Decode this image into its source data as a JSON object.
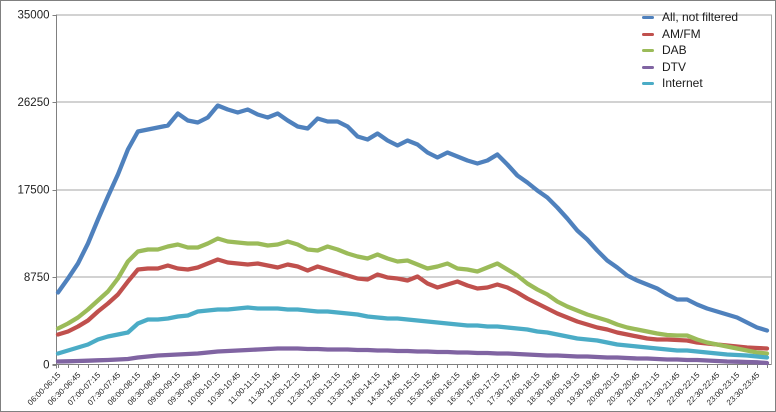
{
  "chart_data": {
    "type": "line",
    "title": "",
    "xlabel": "",
    "ylabel": "",
    "ylim": [
      0,
      35000
    ],
    "y_ticks": [
      0,
      8750,
      17500,
      26250,
      35000
    ],
    "grid": true,
    "legend_position": "top-right",
    "x_label_rotation": -45,
    "x_points_per_label": 2,
    "x_tick_labels": [
      "06:00-06:15",
      "06:30-06:45",
      "07:00-07:15",
      "07:30-07:45",
      "08:00-08:15",
      "08:30-08:45",
      "09:00-09:15",
      "09:30-09:45",
      "10:00-10:15",
      "10:30-10:45",
      "11:00-11:15",
      "11:30-11:45",
      "12:00-12:15",
      "12:30-12:45",
      "13:00-13:15",
      "13:30-13:45",
      "14:00-14:15",
      "14:30-14:45",
      "15:00-15:15",
      "15:30-15:45",
      "16:00-16:15",
      "16:30-16:45",
      "17:00-17:15",
      "17:30-17:45",
      "18:00-18:15",
      "18:30-18:45",
      "19:00-19:15",
      "19:30-19:45",
      "20:00-20:15",
      "20:30-20:45",
      "21:00-21:15",
      "21:30-21:45",
      "22:00-22:15",
      "22:30-22:45",
      "23:00-23:15",
      "23:30-23:45"
    ],
    "series": [
      {
        "name": "All, not filtered",
        "color": "#4F81BD",
        "values": [
          7200,
          8600,
          10100,
          12100,
          14500,
          16800,
          19000,
          21500,
          23300,
          23500,
          23700,
          23900,
          25100,
          24400,
          24200,
          24700,
          25900,
          25500,
          25200,
          25500,
          25000,
          24700,
          25100,
          24400,
          23800,
          23600,
          24600,
          24300,
          24300,
          23800,
          22800,
          22500,
          23100,
          22400,
          21900,
          22400,
          22000,
          21200,
          20700,
          21200,
          20800,
          20400,
          20100,
          20400,
          21000,
          20000,
          18900,
          18200,
          17400,
          16700,
          15700,
          14600,
          13400,
          12500,
          11400,
          10400,
          9700,
          8900,
          8400,
          8000,
          7600,
          7000,
          6500,
          6500,
          6000,
          5600,
          5300,
          5000,
          4700,
          4200,
          3700,
          3400
        ]
      },
      {
        "name": "AM/FM",
        "color": "#C0504D",
        "values": [
          3000,
          3300,
          3800,
          4400,
          5300,
          6100,
          7000,
          8300,
          9500,
          9600,
          9600,
          9900,
          9600,
          9500,
          9700,
          10100,
          10500,
          10200,
          10100,
          10000,
          10100,
          9900,
          9700,
          10000,
          9800,
          9400,
          9800,
          9500,
          9200,
          8900,
          8600,
          8500,
          9000,
          8700,
          8600,
          8400,
          8800,
          8100,
          7700,
          8000,
          8300,
          7900,
          7600,
          7700,
          8000,
          7700,
          7200,
          6600,
          6100,
          5600,
          5100,
          4700,
          4300,
          4000,
          3700,
          3500,
          3200,
          3000,
          2800,
          2600,
          2500,
          2500,
          2450,
          2400,
          2200,
          2100,
          2000,
          1900,
          1800,
          1700,
          1650,
          1600
        ]
      },
      {
        "name": "DAB",
        "color": "#9BBB59",
        "values": [
          3600,
          4100,
          4700,
          5500,
          6400,
          7300,
          8600,
          10300,
          11300,
          11500,
          11500,
          11800,
          12000,
          11700,
          11700,
          12100,
          12600,
          12300,
          12200,
          12100,
          12100,
          11900,
          12000,
          12300,
          12000,
          11500,
          11400,
          11800,
          11500,
          11100,
          10800,
          10600,
          11000,
          10600,
          10300,
          10400,
          10000,
          9600,
          9800,
          10100,
          9600,
          9500,
          9300,
          9700,
          10100,
          9500,
          8900,
          8100,
          7500,
          7000,
          6300,
          5800,
          5400,
          5000,
          4700,
          4400,
          4000,
          3700,
          3500,
          3300,
          3100,
          2950,
          2900,
          2900,
          2500,
          2200,
          2000,
          1800,
          1600,
          1400,
          1200,
          1100
        ]
      },
      {
        "name": "DTV",
        "color": "#8064A2",
        "values": [
          300,
          320,
          350,
          380,
          420,
          450,
          500,
          550,
          700,
          800,
          900,
          950,
          1000,
          1050,
          1100,
          1200,
          1300,
          1350,
          1400,
          1450,
          1500,
          1550,
          1600,
          1600,
          1600,
          1550,
          1550,
          1500,
          1500,
          1500,
          1450,
          1450,
          1400,
          1400,
          1350,
          1350,
          1300,
          1300,
          1250,
          1250,
          1200,
          1200,
          1150,
          1150,
          1100,
          1100,
          1050,
          1000,
          950,
          900,
          900,
          850,
          800,
          800,
          750,
          700,
          700,
          650,
          600,
          600,
          550,
          500,
          500,
          450,
          450,
          400,
          350,
          300,
          280,
          250,
          220,
          150
        ]
      },
      {
        "name": "Internet",
        "color": "#4BACC6",
        "values": [
          1100,
          1400,
          1700,
          2000,
          2500,
          2800,
          3000,
          3200,
          4100,
          4500,
          4500,
          4600,
          4800,
          4900,
          5300,
          5400,
          5500,
          5500,
          5600,
          5700,
          5600,
          5600,
          5600,
          5500,
          5500,
          5400,
          5300,
          5300,
          5200,
          5100,
          5000,
          4800,
          4700,
          4600,
          4600,
          4500,
          4400,
          4300,
          4200,
          4100,
          4000,
          3900,
          3900,
          3800,
          3800,
          3700,
          3600,
          3500,
          3300,
          3200,
          3000,
          2800,
          2600,
          2500,
          2400,
          2200,
          2000,
          1900,
          1800,
          1700,
          1600,
          1500,
          1400,
          1400,
          1300,
          1200,
          1100,
          1000,
          950,
          900,
          800,
          700
        ]
      }
    ],
    "style": {
      "gridline_color": "#A6A6A6",
      "axis_color": "#808080",
      "tick_label_color": "#1f1f1f",
      "plot_background": "#ffffff",
      "line_width": 4.3
    }
  }
}
